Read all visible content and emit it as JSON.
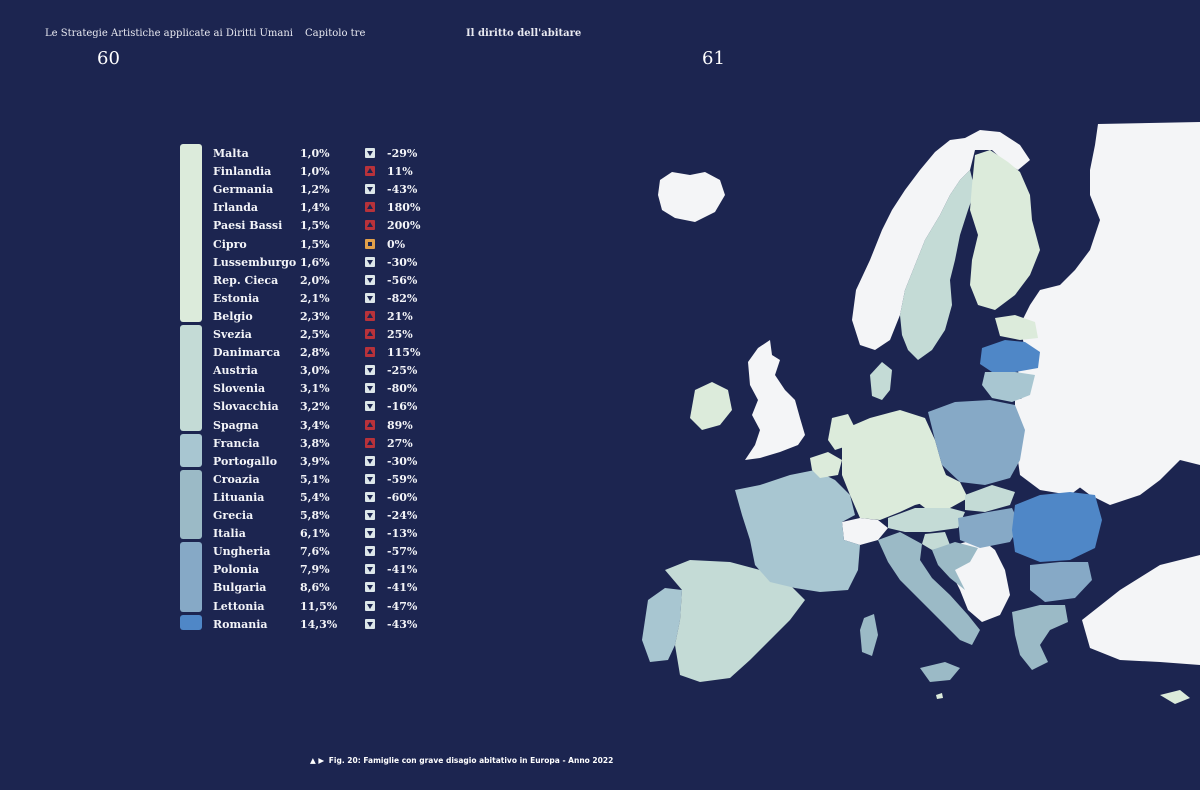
{
  "header": {
    "book_title": "Le Strategie Artistiche applicate ai Diritti Umani",
    "chapter": "Capitolo tre",
    "section": "Il diritto dell'abitare",
    "page_left": "60",
    "page_right": "61"
  },
  "legend": {
    "bands": [
      {
        "from": 0,
        "to": 9,
        "color": "#dcebdb"
      },
      {
        "from": 10,
        "to": 15,
        "color": "#c4dbd6"
      },
      {
        "from": 16,
        "to": 17,
        "color": "#a8c6d1"
      },
      {
        "from": 18,
        "to": 21,
        "color": "#9bbac6"
      },
      {
        "from": 22,
        "to": 25,
        "color": "#86a9c6"
      },
      {
        "from": 26,
        "to": 26,
        "color": "#4f87c7"
      }
    ],
    "rows": [
      {
        "country": "Malta",
        "value": "1,0%",
        "trend": "down",
        "change": "-29%"
      },
      {
        "country": "Finlandia",
        "value": "1,0%",
        "trend": "up",
        "change": "11%"
      },
      {
        "country": "Germania",
        "value": "1,2%",
        "trend": "down",
        "change": "-43%"
      },
      {
        "country": "Irlanda",
        "value": "1,4%",
        "trend": "up",
        "change": "180%"
      },
      {
        "country": "Paesi Bassi",
        "value": "1,5%",
        "trend": "up",
        "change": "200%"
      },
      {
        "country": "Cipro",
        "value": "1,5%",
        "trend": "flat",
        "change": "0%"
      },
      {
        "country": "Lussemburgo",
        "value": "1,6%",
        "trend": "down",
        "change": "-30%"
      },
      {
        "country": "Rep. Cieca",
        "value": "2,0%",
        "trend": "down",
        "change": "-56%"
      },
      {
        "country": "Estonia",
        "value": "2,1%",
        "trend": "down",
        "change": "-82%"
      },
      {
        "country": "Belgio",
        "value": "2,3%",
        "trend": "up",
        "change": "21%"
      },
      {
        "country": "Svezia",
        "value": "2,5%",
        "trend": "up",
        "change": "25%"
      },
      {
        "country": "Danimarca",
        "value": "2,8%",
        "trend": "up",
        "change": "115%"
      },
      {
        "country": "Austria",
        "value": "3,0%",
        "trend": "down",
        "change": "-25%"
      },
      {
        "country": "Slovenia",
        "value": "3,1%",
        "trend": "down",
        "change": "-80%"
      },
      {
        "country": "Slovacchia",
        "value": "3,2%",
        "trend": "down",
        "change": "-16%"
      },
      {
        "country": "Spagna",
        "value": "3,4%",
        "trend": "up",
        "change": "89%"
      },
      {
        "country": "Francia",
        "value": "3,8%",
        "trend": "up",
        "change": "27%"
      },
      {
        "country": "Portogallo",
        "value": "3,9%",
        "trend": "down",
        "change": "-30%"
      },
      {
        "country": "Croazia",
        "value": "5,1%",
        "trend": "down",
        "change": "-59%"
      },
      {
        "country": "Lituania",
        "value": "5,4%",
        "trend": "down",
        "change": "-60%"
      },
      {
        "country": "Grecia",
        "value": "5,8%",
        "trend": "down",
        "change": "-24%"
      },
      {
        "country": "Italia",
        "value": "6,1%",
        "trend": "down",
        "change": "-13%"
      },
      {
        "country": "Ungheria",
        "value": "7,6%",
        "trend": "down",
        "change": "-57%"
      },
      {
        "country": "Polonia",
        "value": "7,9%",
        "trend": "down",
        "change": "-41%"
      },
      {
        "country": "Bulgaria",
        "value": "8,6%",
        "trend": "down",
        "change": "-41%"
      },
      {
        "country": "Lettonia",
        "value": "11,5%",
        "trend": "down",
        "change": "-47%"
      },
      {
        "country": "Romania",
        "value": "14,3%",
        "trend": "down",
        "change": "-43%"
      }
    ]
  },
  "trend_colors": {
    "down": "#dde7ea",
    "up": "#b8323a",
    "flat": "#e2a04a"
  },
  "caption": {
    "arrows": "▲ ▶",
    "text": "Fig. 20: Famiglie con grave disagio abitativo in Europa - Anno 2022"
  },
  "map": {
    "land_color": "#f4f5f7",
    "sea_color": "#1c2550"
  }
}
